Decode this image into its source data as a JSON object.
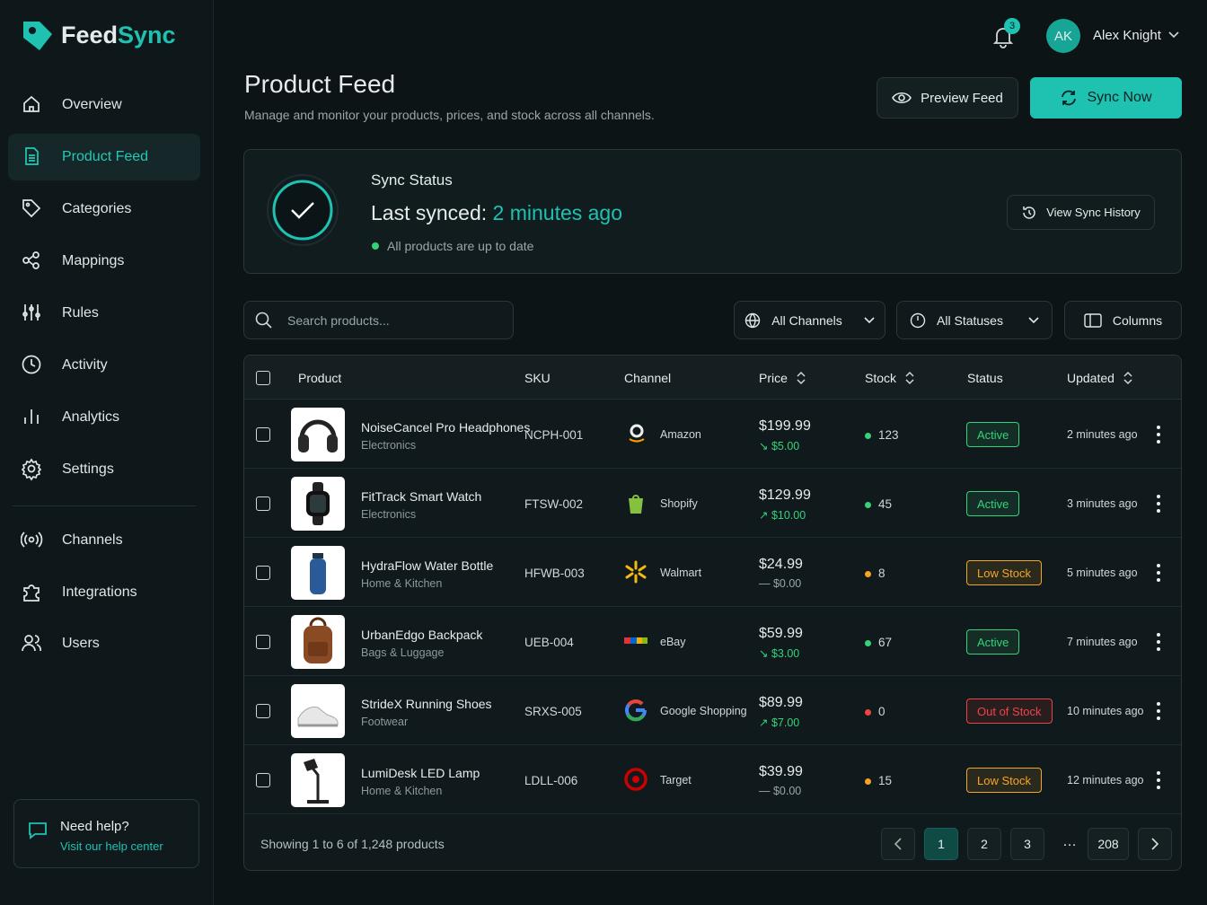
{
  "brand": {
    "part1": "Feed",
    "part2": "Sync"
  },
  "nav": {
    "main": [
      "Overview",
      "Product Feed",
      "Categories",
      "Mappings",
      "Rules",
      "Activity",
      "Analytics",
      "Settings"
    ],
    "secondary": [
      "Channels",
      "Integrations",
      "Users"
    ],
    "active": 1
  },
  "help": {
    "title": "Need help?",
    "link": "Visit our help center"
  },
  "header": {
    "notifications": 3,
    "initials": "AK",
    "user": "Alex Knight"
  },
  "page": {
    "title": "Product Feed",
    "subtitle": "Manage and monitor your products, prices, and stock across all channels.",
    "preview_button": "Preview Feed",
    "sync_button": "Sync Now"
  },
  "sync": {
    "heading": "Sync Status",
    "label": "Last synced:",
    "time": "2 minutes ago",
    "status": "All products are up to date",
    "history_button": "View Sync History"
  },
  "filters": {
    "search_placeholder": "Search products...",
    "channel": "All Channels",
    "status": "All Statuses",
    "columns": "Columns"
  },
  "table": {
    "columns": [
      {
        "label": "Product",
        "sortable": false
      },
      {
        "label": "SKU",
        "sortable": false
      },
      {
        "label": "Channel",
        "sortable": false
      },
      {
        "label": "Price",
        "sortable": true
      },
      {
        "label": "Stock",
        "sortable": true
      },
      {
        "label": "Status",
        "sortable": false
      },
      {
        "label": "Updated",
        "sortable": true
      }
    ],
    "rows": [
      {
        "name": "NoiseCancel Pro Headphones",
        "category": "Electronics",
        "sku": "NCPH-001",
        "channel": "Amazon",
        "price": "$199.99",
        "change": "↘ $5.00",
        "change_color": "#34d27b",
        "stock": 123,
        "status": "Active",
        "status_color": "#34d27b",
        "updated": "2 minutes ago"
      },
      {
        "name": "FitTrack Smart Watch",
        "category": "Electronics",
        "sku": "FTSW-002",
        "channel": "Shopify",
        "price": "$129.99",
        "change": "↗ $10.00",
        "change_color": "#34d27b",
        "stock": 45,
        "status": "Active",
        "status_color": "#34d27b",
        "updated": "3 minutes ago"
      },
      {
        "name": "HydraFlow Water Bottle",
        "category": "Home & Kitchen",
        "sku": "HFWB-003",
        "channel": "Walmart",
        "price": "$24.99",
        "change": "— $0.00",
        "change_color": "#9aa6a8",
        "stock": 8,
        "status": "Low Stock",
        "status_color": "#f5a524",
        "updated": "5 minutes ago"
      },
      {
        "name": "UrbanEdgo Backpack",
        "category": "Bags & Luggage",
        "sku": "UEB-004",
        "channel": "eBay",
        "price": "$59.99",
        "change": "↘ $3.00",
        "change_color": "#34d27b",
        "stock": 67,
        "status": "Active",
        "status_color": "#34d27b",
        "updated": "7 minutes ago"
      },
      {
        "name": "StrideX Running Shoes",
        "category": "Footwear",
        "sku": "SRXS-005",
        "channel": "Google Shopping",
        "price": "$89.99",
        "change": "↗ $7.00",
        "change_color": "#34d27b",
        "stock": 0,
        "status": "Out of Stock",
        "status_color": "#ef4444",
        "updated": "10 minutes ago"
      },
      {
        "name": "LumiDesk LED Lamp",
        "category": "Home & Kitchen",
        "sku": "LDLL-006",
        "channel": "Target",
        "price": "$39.99",
        "change": "— $0.00",
        "change_color": "#9aa6a8",
        "stock": 15,
        "status": "Low Stock",
        "status_color": "#f5a524",
        "updated": "12 minutes ago"
      }
    ]
  },
  "pagination": {
    "summary": "Showing 1 to 6 of 1,248 products",
    "pages": [
      1,
      2,
      3,
      "…",
      208
    ],
    "current": 1
  }
}
